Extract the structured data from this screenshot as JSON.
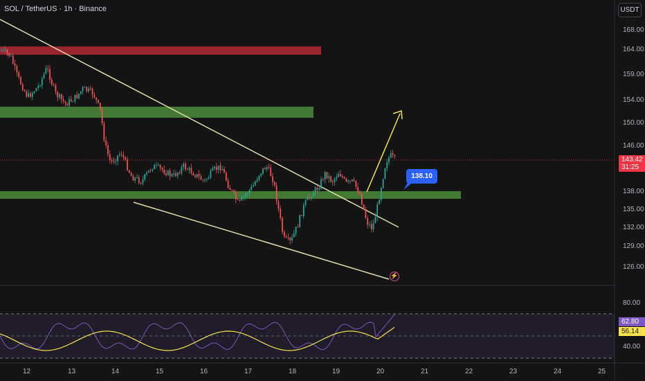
{
  "header": {
    "title": "SOL / TetherUS · 1h · Binance",
    "currency": "USDT"
  },
  "price_axis": {
    "labels": [
      "168.00",
      "164.00",
      "159.00",
      "154.00",
      "150.00",
      "146.00",
      "138.00",
      "135.00",
      "132.00",
      "129.00",
      "126.00"
    ]
  },
  "last_price": {
    "value": "143.42",
    "countdown": "31:25",
    "color": "#f23645"
  },
  "callout": {
    "value": "138.10",
    "color": "#2962ff"
  },
  "rsi": {
    "axis_labels": [
      "80.00",
      "40.00"
    ],
    "value": "62.80",
    "ma_value": "56.14",
    "rsi_color": "#7e57c2",
    "ma_color": "#f7e24b"
  },
  "time_axis": {
    "labels": [
      "12",
      "13",
      "14",
      "15",
      "16",
      "17",
      "18",
      "19",
      "20",
      "21",
      "22",
      "23",
      "24",
      "25"
    ]
  },
  "zones": {
    "resistance_color": "#b22833",
    "support_color": "#4a8a3a"
  },
  "candle_colors": {
    "up": "#26a69a",
    "down": "#ef5350"
  },
  "icons": {
    "alert": "alert-icon"
  }
}
